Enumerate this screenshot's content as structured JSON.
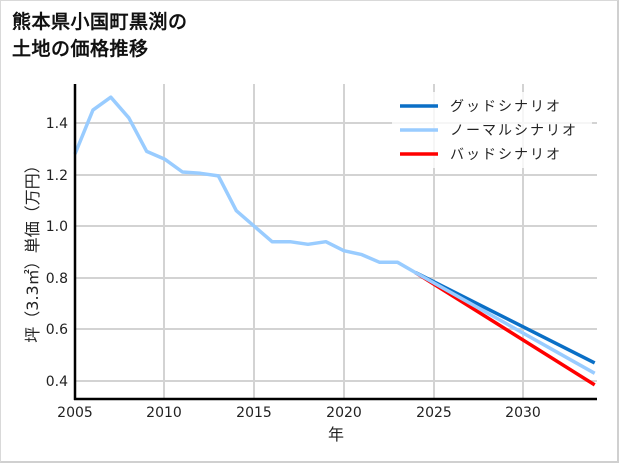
{
  "title": {
    "line1": "熊本県小国町黒渕の",
    "line2": "土地の価格推移"
  },
  "chart_data": {
    "type": "line",
    "title": "熊本県小国町黒渕の土地の価格推移",
    "xlabel": "年",
    "ylabel": "坪（3.3㎡）単価（万円）",
    "xlim": [
      2005,
      2034
    ],
    "ylim": [
      0.33,
      1.57
    ],
    "xticks": [
      2005,
      2010,
      2015,
      2020,
      2025,
      2030
    ],
    "yticks": [
      0.4,
      0.6,
      0.8,
      1.0,
      1.2,
      1.4
    ],
    "xtick_labels": [
      "2005",
      "2010",
      "2015",
      "2020",
      "2025",
      "2030"
    ],
    "ytick_labels": [
      "0.4",
      "0.6",
      "0.8",
      "1.0",
      "1.2",
      "1.4"
    ],
    "grid": true,
    "legend_position": "upper right",
    "series": [
      {
        "name": "グッドシナリオ",
        "color": "#0a6fc6",
        "x": [
          2024,
          2034
        ],
        "values": [
          0.82,
          0.47
        ]
      },
      {
        "name": "ノーマルシナリオ",
        "color": "#99ccff",
        "x": [
          2005,
          2006,
          2007,
          2008,
          2009,
          2010,
          2011,
          2012,
          2013,
          2014,
          2015,
          2016,
          2017,
          2018,
          2019,
          2020,
          2021,
          2022,
          2023,
          2024,
          2034
        ],
        "values": [
          1.28,
          1.45,
          1.5,
          1.42,
          1.29,
          1.26,
          1.21,
          1.205,
          1.195,
          1.06,
          1.0,
          0.94,
          0.94,
          0.93,
          0.94,
          0.905,
          0.89,
          0.86,
          0.86,
          0.82,
          0.43
        ]
      },
      {
        "name": "バッドシナリオ",
        "color": "#ff0000",
        "x": [
          2024,
          2034
        ],
        "values": [
          0.82,
          0.385
        ]
      }
    ]
  },
  "legend": {
    "items": [
      {
        "label": "グッドシナリオ",
        "color": "#0a6fc6"
      },
      {
        "label": "ノーマルシナリオ",
        "color": "#99ccff"
      },
      {
        "label": "バッドシナリオ",
        "color": "#ff0000"
      }
    ]
  },
  "axes": {
    "xlabel": "年",
    "ylabel": "坪（3.3㎡）単価（万円）",
    "xtick_labels": [
      "2005",
      "2010",
      "2015",
      "2020",
      "2025",
      "2030"
    ],
    "ytick_labels": [
      "1.4",
      "1.2",
      "1.0",
      "0.8",
      "0.6",
      "0.4"
    ]
  }
}
